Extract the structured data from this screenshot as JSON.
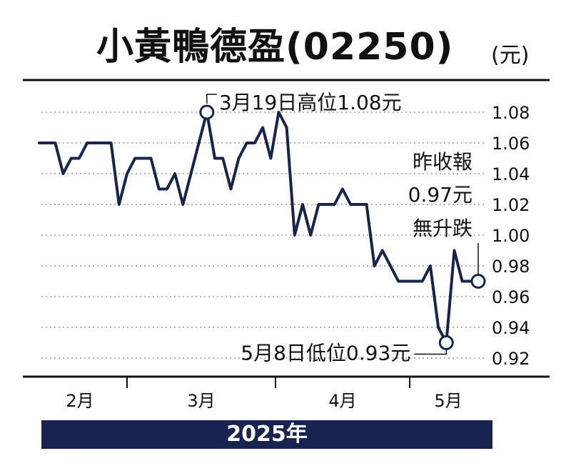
{
  "title": "小黃鴨德盈(02250)",
  "unit": "(元)",
  "year_label": "2025年",
  "colors": {
    "line": "#18234f",
    "grid": "#9a9a9a",
    "band": "#18234f"
  },
  "chart_data": {
    "type": "line",
    "title": "小黃鴨德盈(02250)",
    "ylabel": "(元)",
    "ylim": [
      0.91,
      1.1
    ],
    "yticks": [
      "1.08",
      "1.06",
      "1.04",
      "1.02",
      "1.00",
      "0.98",
      "0.96",
      "0.94",
      "0.92"
    ],
    "ytick_values": [
      1.08,
      1.06,
      1.04,
      1.02,
      1.0,
      0.98,
      0.96,
      0.94,
      0.92
    ],
    "months": [
      "2月",
      "3月",
      "4月",
      "5月"
    ],
    "grid": "horizontal dotted",
    "series": [
      {
        "values": [
          1.06,
          1.06,
          1.06,
          1.04,
          1.05,
          1.05,
          1.06,
          1.06,
          1.06,
          1.06,
          1.02,
          1.04,
          1.05,
          1.05,
          1.05,
          1.03,
          1.03,
          1.04,
          1.02,
          1.04,
          1.06,
          1.08,
          1.05,
          1.05,
          1.03,
          1.05,
          1.06,
          1.06,
          1.07,
          1.05,
          1.08,
          1.07,
          1.0,
          1.02,
          1.0,
          1.02,
          1.02,
          1.02,
          1.03,
          1.02,
          1.02,
          1.02,
          0.98,
          0.99,
          0.98,
          0.97,
          0.97,
          0.97,
          0.97,
          0.98,
          0.94,
          0.93,
          0.99,
          0.97,
          0.97,
          0.97
        ]
      }
    ],
    "annotations": [
      {
        "label": "3月19日高位1.08元",
        "value": 1.08
      },
      {
        "label": "5月8日低位0.93元",
        "value": 0.93
      },
      {
        "lines": [
          "昨收報",
          "0.97元",
          "無升跌"
        ],
        "value": 0.97
      }
    ]
  }
}
